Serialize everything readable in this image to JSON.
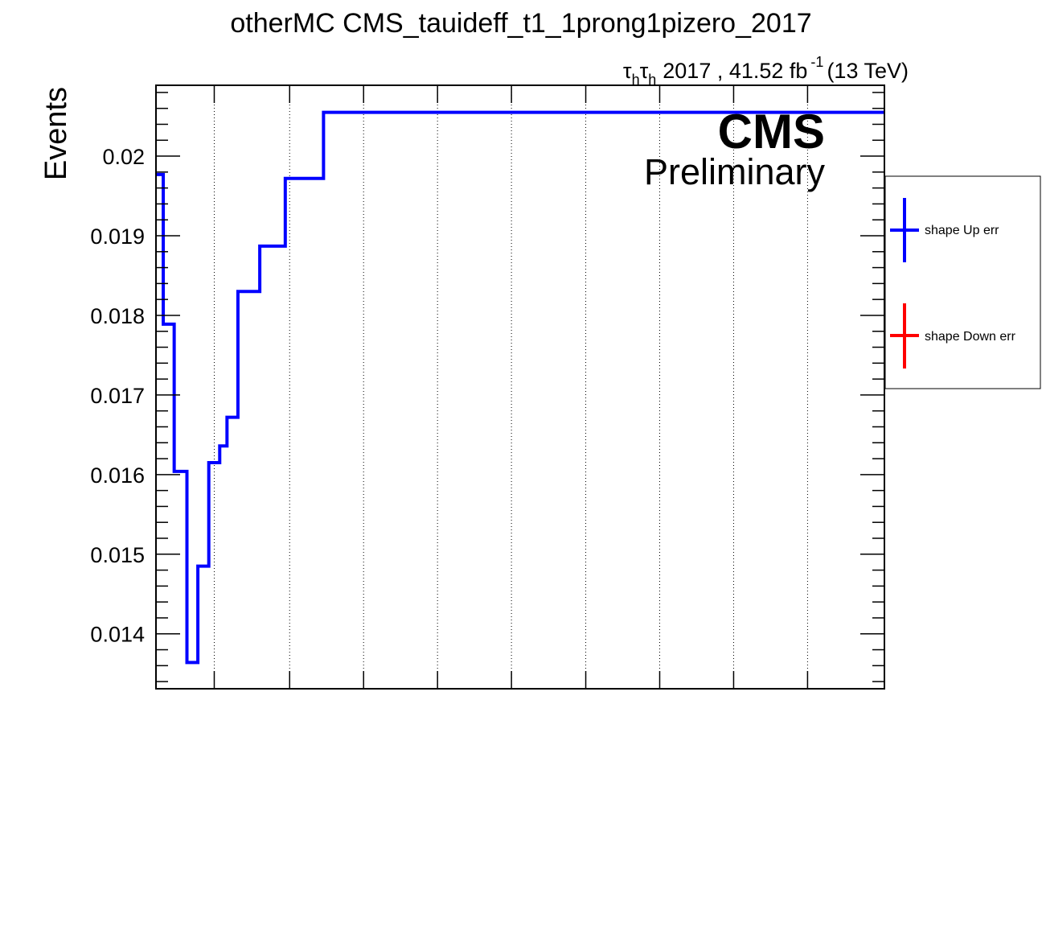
{
  "chart_data": {
    "type": "line",
    "title": "otherMC CMS_tauideff_t1_1prong1pizero_2017",
    "ylabel": "Events",
    "xlabel": "",
    "lumi": {
      "tau_symbol": "τ",
      "sub": "h",
      "text": "2017 , 41.52 fb",
      "sup": "-1",
      "energy": "(13 TeV)"
    },
    "cms_label": "CMS",
    "cms_sublabel": "Preliminary",
    "ylim": [
      0.01331,
      0.02089
    ],
    "yticks": [
      {
        "value": 0.014,
        "label": "0.014"
      },
      {
        "value": 0.015,
        "label": "0.015"
      },
      {
        "value": 0.016,
        "label": "0.016"
      },
      {
        "value": 0.017,
        "label": "0.017"
      },
      {
        "value": 0.018,
        "label": "0.018"
      },
      {
        "value": 0.019,
        "label": "0.019"
      },
      {
        "value": 0.02,
        "label": "0.02"
      }
    ],
    "xlim": [
      0,
      200
    ],
    "xgrid": [
      16,
      36.7,
      57,
      77.3,
      97.6,
      118,
      138.3,
      158.6,
      178.9
    ],
    "grid": {
      "x": true,
      "y": false
    },
    "legend_position": "right",
    "series": [
      {
        "name": "shape Up err",
        "color": "#0000ff",
        "edges": [
          0,
          2,
          5,
          8.5,
          11.5,
          14.5,
          17.5,
          19.5,
          22.5,
          28.5,
          35.5,
          46,
          200
        ],
        "values": [
          0.01977,
          0.01789,
          0.01604,
          0.01364,
          0.01485,
          0.01615,
          0.01636,
          0.01672,
          0.0183,
          0.01887,
          0.01972,
          0.02055
        ]
      },
      {
        "name": "shape Down err",
        "color": "#ff0000",
        "edges": [],
        "values": []
      }
    ]
  }
}
